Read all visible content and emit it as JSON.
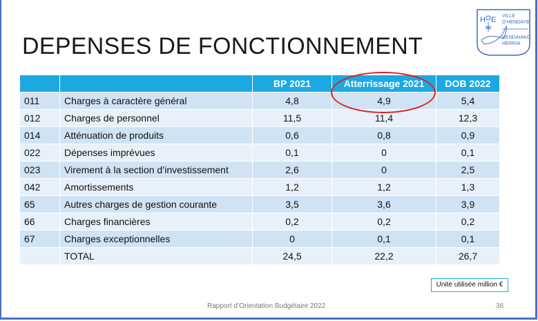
{
  "title": "DEPENSES DE FONCTIONNEMENT",
  "logo": {
    "line1": "VILLE",
    "line2": "D'HENDAYE",
    "line3": "HENDAIAKO",
    "line4": "HERRIA",
    "initials": "H E"
  },
  "table": {
    "headers": [
      "",
      "",
      "BP 2021",
      "Atterrissage 2021",
      "DOB 2022"
    ],
    "rows": [
      [
        "011",
        "Charges à caractère général",
        "4,8",
        "4,9",
        "5,4"
      ],
      [
        "012",
        "Charges de personnel",
        "11,5",
        "11,4",
        "12,3"
      ],
      [
        "014",
        "Atténuation de produits",
        "0,6",
        "0,8",
        "0,9"
      ],
      [
        "022",
        "Dépenses imprévues",
        "0,1",
        "0",
        "0,1"
      ],
      [
        "023",
        "Virement à la section d’investissement",
        "2,6",
        "0",
        "2,5"
      ],
      [
        "042",
        "Amortissements",
        "1,2",
        "1,2",
        "1,3"
      ],
      [
        "65",
        "Autres charges de gestion courante",
        "3,5",
        "3,6",
        "3,9"
      ],
      [
        "66",
        "Charges financières",
        "0,2",
        "0,2",
        "0,2"
      ],
      [
        "67",
        "Charges exceptionnelles",
        "0",
        "0,1",
        "0,1"
      ],
      [
        "",
        "TOTAL",
        "24,5",
        "22,2",
        "26,7"
      ]
    ],
    "highlight_color": "#e02020",
    "header_color": "#1ca9e1"
  },
  "unit_note": "Unité utilisée million €",
  "footer": "Rapport d’Orientation Budgétaire 2022",
  "page_number": "38"
}
